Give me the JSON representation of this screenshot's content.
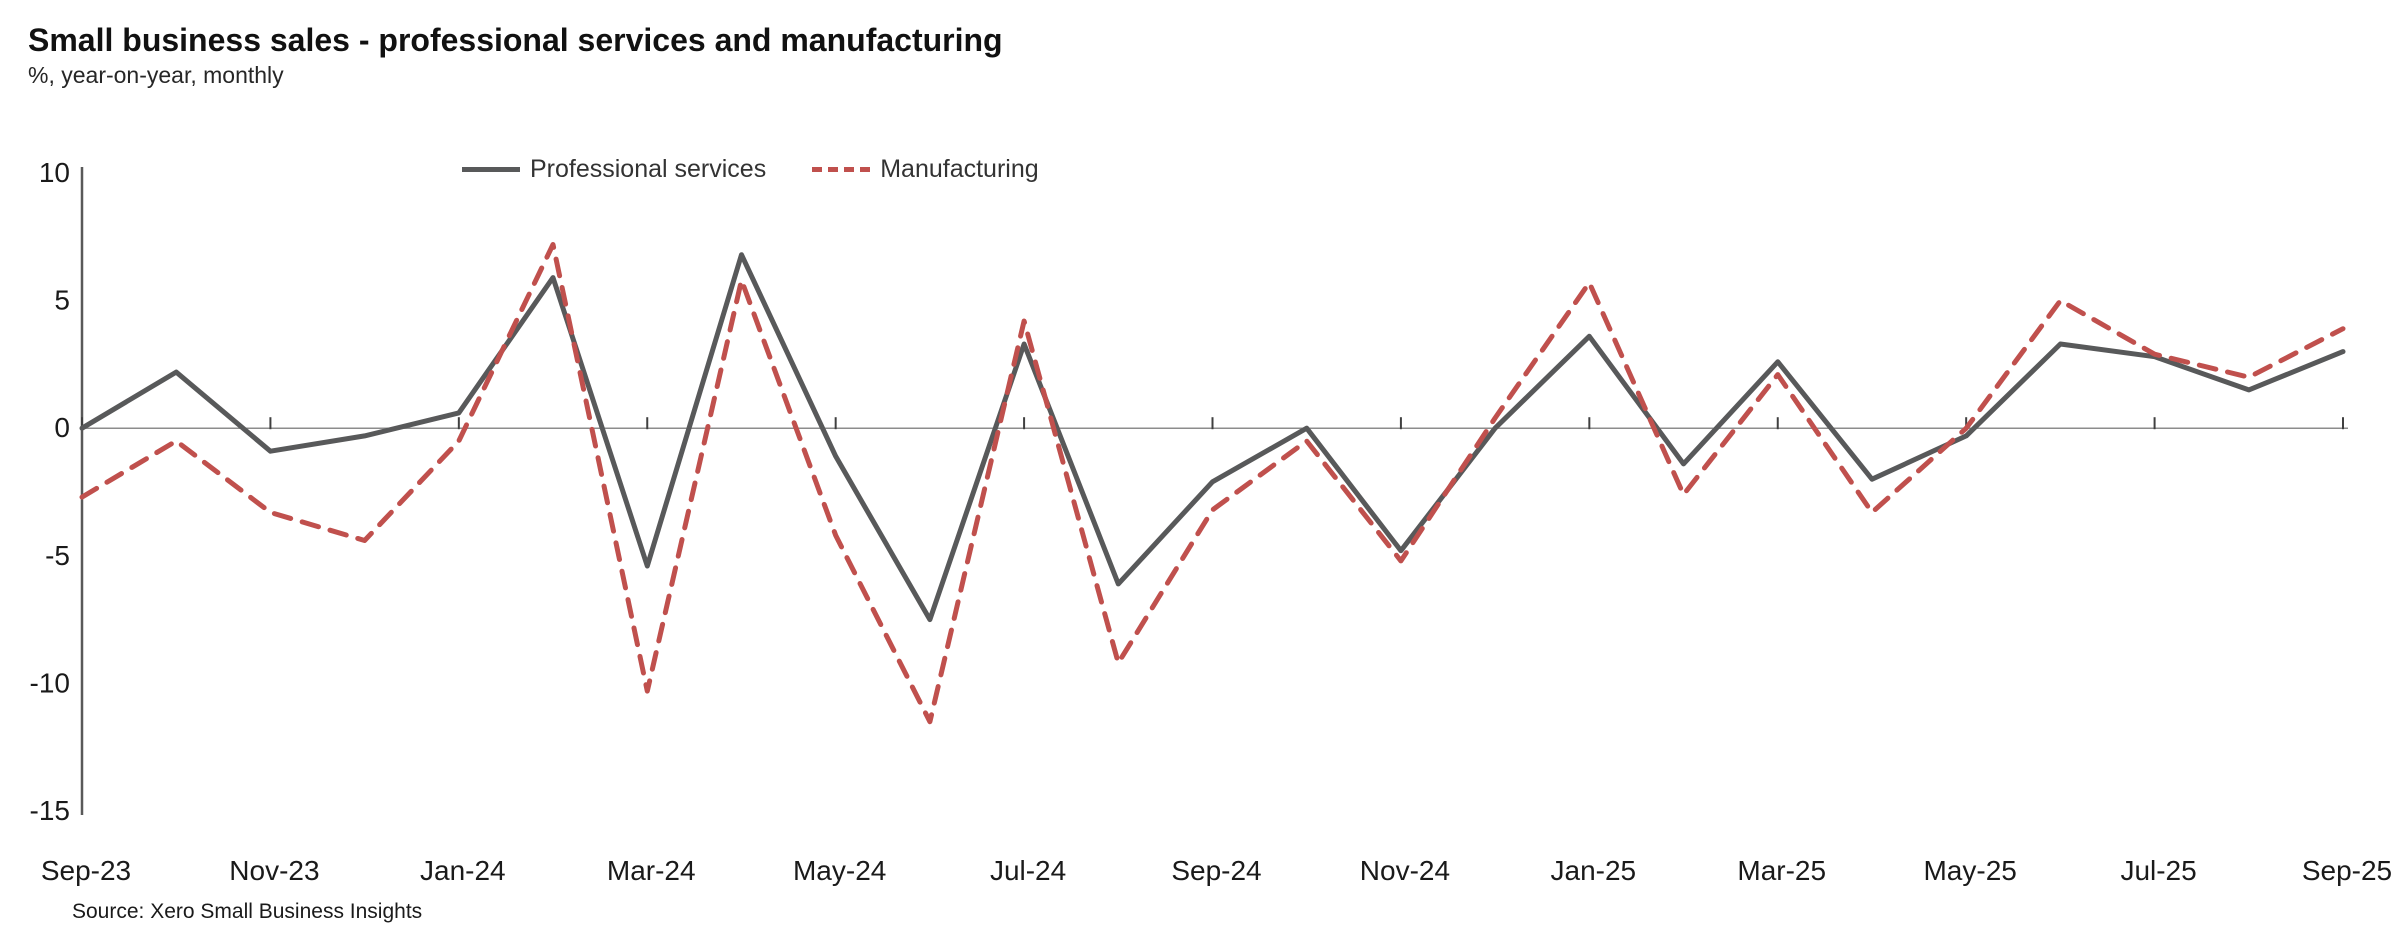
{
  "header": {
    "title": "Small business sales - professional services and manufacturing",
    "subtitle": "%, year-on-year, monthly"
  },
  "legend": {
    "items": [
      {
        "label": "Professional services",
        "color": "#58595a",
        "style": "solid"
      },
      {
        "label": "Manufacturing",
        "color": "#c0504d",
        "style": "dashed"
      }
    ]
  },
  "footer": {
    "source": "Source: Xero Small Business Insights"
  },
  "chart_data": {
    "type": "line",
    "title": "Small business sales - professional services and manufacturing",
    "ylabel": "%, year-on-year, monthly",
    "x": [
      "Sep-23",
      "Oct-23",
      "Nov-23",
      "Dec-23",
      "Jan-24",
      "Feb-24",
      "Mar-24",
      "Apr-24",
      "May-24",
      "Jun-24",
      "Jul-24",
      "Aug-24",
      "Sep-24",
      "Oct-24",
      "Nov-24",
      "Dec-24",
      "Jan-25",
      "Feb-25",
      "Mar-25",
      "Apr-25",
      "May-25",
      "Jun-25",
      "Jul-25",
      "Aug-25",
      "Sep-25"
    ],
    "x_tick_step": 2,
    "x_tick_labels": [
      "Sep-23",
      "Nov-23",
      "Jan-24",
      "Mar-24",
      "May-24",
      "Jul-24",
      "Sep-24",
      "Nov-24",
      "Jan-25",
      "Mar-25",
      "May-25",
      "Jul-25",
      "Sep-25"
    ],
    "series": [
      {
        "name": "Professional services",
        "color": "#58595a",
        "style": "solid",
        "values": [
          0.0,
          2.2,
          -0.9,
          -0.3,
          0.6,
          5.9,
          -5.4,
          6.8,
          -1.1,
          -7.5,
          3.3,
          -6.1,
          -2.1,
          0.0,
          -4.8,
          0.0,
          3.6,
          -1.4,
          2.6,
          -2.0,
          -0.3,
          3.3,
          2.8,
          1.5,
          3.0
        ]
      },
      {
        "name": "Manufacturing",
        "color": "#c0504d",
        "style": "dashed",
        "values": [
          -2.7,
          -0.5,
          -3.3,
          -4.4,
          -0.5,
          7.2,
          -10.3,
          5.8,
          -4.2,
          -11.5,
          4.2,
          -9.2,
          -3.2,
          -0.5,
          -5.2,
          0.4,
          5.7,
          -2.6,
          2.1,
          -3.3,
          0.0,
          5.0,
          2.9,
          2.0,
          3.9
        ]
      }
    ],
    "ylim": [
      -15,
      10
    ],
    "yticks": [
      10,
      5,
      0,
      -5,
      -10,
      -15
    ],
    "grid": false,
    "baseline_at_zero": true,
    "legend_position": "top-inside"
  }
}
